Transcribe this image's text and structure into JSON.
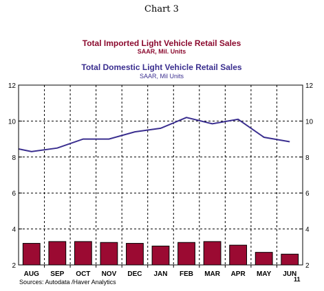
{
  "caption": "Chart 3",
  "source": "Sources:  Autodata /Haver Analytics",
  "year_note": "11",
  "colors": {
    "imported": "#9b0a32",
    "domestic": "#3a2e8f"
  },
  "chart_data": {
    "type": "bar+line",
    "categories": [
      "AUG",
      "SEP",
      "OCT",
      "NOV",
      "DEC",
      "JAN",
      "FEB",
      "MAR",
      "APR",
      "MAY",
      "JUN"
    ],
    "ylim": [
      2,
      12
    ],
    "yticks": [
      "2",
      "4",
      "6",
      "8",
      "10",
      "12"
    ],
    "grid": true,
    "series": [
      {
        "name": "Total Imported Light Vehicle Retail Sales",
        "units": "SAAR, Mil. Units",
        "type": "bar",
        "values": [
          3.2,
          3.3,
          3.3,
          3.25,
          3.2,
          3.05,
          3.25,
          3.3,
          3.1,
          2.7,
          2.6
        ]
      },
      {
        "name": "Total Domestic Light Vehicle Retail Sales",
        "units": "SAAR, Mil Units",
        "type": "line",
        "values": [
          8.3,
          8.5,
          9.0,
          9.0,
          9.4,
          9.6,
          10.2,
          9.85,
          10.1,
          9.1,
          8.85
        ],
        "start_value": 8.45
      }
    ]
  }
}
